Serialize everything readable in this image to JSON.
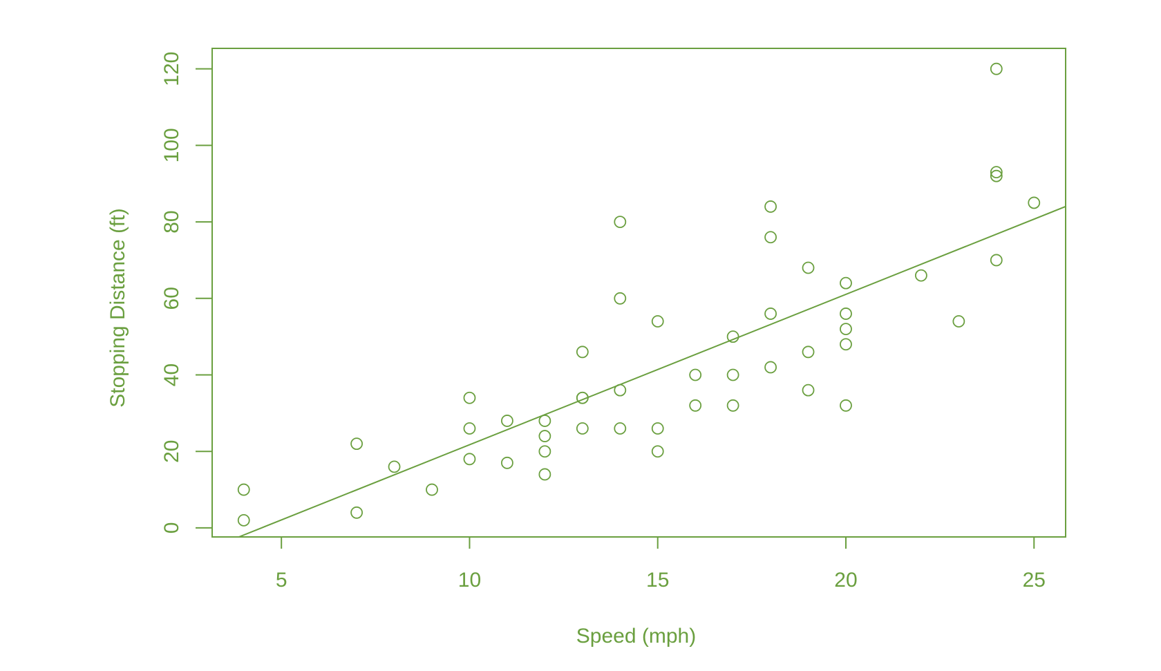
{
  "colors": {
    "foreground": "#6a9f3f",
    "background": "#ffffff"
  },
  "chart_data": {
    "type": "scatter",
    "title": "",
    "xlabel": "Speed (mph)",
    "ylabel": "Stopping Distance (ft)",
    "xlim": [
      3.16,
      25.84
    ],
    "ylim": [
      -2.36,
      125.36
    ],
    "xticks": [
      5,
      10,
      15,
      20,
      25
    ],
    "yticks": [
      0,
      20,
      40,
      60,
      80,
      100,
      120
    ],
    "x_tick_labels": [
      "5",
      "10",
      "15",
      "20",
      "25"
    ],
    "y_tick_labels": [
      "0",
      "20",
      "40",
      "60",
      "80",
      "100",
      "120"
    ],
    "grid": false,
    "legend": null,
    "series": [
      {
        "points": [
          {
            "x": 4,
            "y": 2
          },
          {
            "x": 4,
            "y": 10
          },
          {
            "x": 7,
            "y": 4
          },
          {
            "x": 7,
            "y": 22
          },
          {
            "x": 8,
            "y": 16
          },
          {
            "x": 9,
            "y": 10
          },
          {
            "x": 10,
            "y": 18
          },
          {
            "x": 10,
            "y": 26
          },
          {
            "x": 10,
            "y": 34
          },
          {
            "x": 11,
            "y": 17
          },
          {
            "x": 11,
            "y": 28
          },
          {
            "x": 12,
            "y": 14
          },
          {
            "x": 12,
            "y": 20
          },
          {
            "x": 12,
            "y": 24
          },
          {
            "x": 12,
            "y": 28
          },
          {
            "x": 13,
            "y": 26
          },
          {
            "x": 13,
            "y": 34
          },
          {
            "x": 13,
            "y": 34
          },
          {
            "x": 13,
            "y": 46
          },
          {
            "x": 14,
            "y": 26
          },
          {
            "x": 14,
            "y": 36
          },
          {
            "x": 14,
            "y": 60
          },
          {
            "x": 14,
            "y": 80
          },
          {
            "x": 15,
            "y": 20
          },
          {
            "x": 15,
            "y": 26
          },
          {
            "x": 15,
            "y": 54
          },
          {
            "x": 16,
            "y": 32
          },
          {
            "x": 16,
            "y": 40
          },
          {
            "x": 17,
            "y": 32
          },
          {
            "x": 17,
            "y": 40
          },
          {
            "x": 17,
            "y": 50
          },
          {
            "x": 18,
            "y": 42
          },
          {
            "x": 18,
            "y": 56
          },
          {
            "x": 18,
            "y": 76
          },
          {
            "x": 18,
            "y": 84
          },
          {
            "x": 19,
            "y": 36
          },
          {
            "x": 19,
            "y": 46
          },
          {
            "x": 19,
            "y": 68
          },
          {
            "x": 20,
            "y": 32
          },
          {
            "x": 20,
            "y": 48
          },
          {
            "x": 20,
            "y": 52
          },
          {
            "x": 20,
            "y": 56
          },
          {
            "x": 20,
            "y": 64
          },
          {
            "x": 22,
            "y": 66
          },
          {
            "x": 23,
            "y": 54
          },
          {
            "x": 24,
            "y": 70
          },
          {
            "x": 24,
            "y": 92
          },
          {
            "x": 24,
            "y": 93
          },
          {
            "x": 24,
            "y": 120
          },
          {
            "x": 25,
            "y": 85
          }
        ]
      }
    ],
    "regression_line": {
      "intercept": -17.579,
      "slope": 3.932
    }
  }
}
